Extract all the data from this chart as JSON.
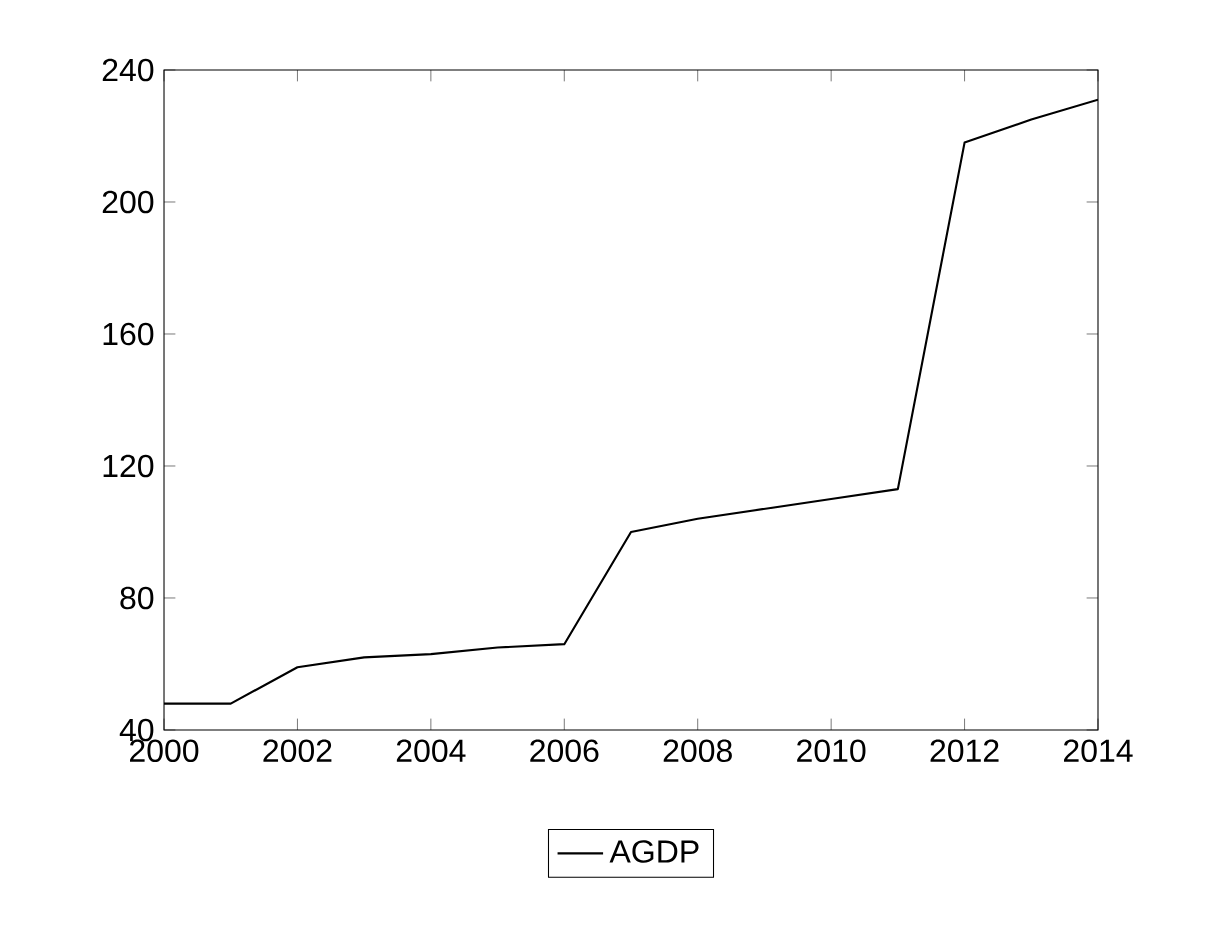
{
  "chart_data": {
    "type": "line",
    "x": [
      2000,
      2001,
      2002,
      2003,
      2004,
      2005,
      2006,
      2007,
      2008,
      2009,
      2010,
      2011,
      2012,
      2013,
      2014
    ],
    "series": [
      {
        "name": "AGDP",
        "color": "#000000",
        "values": [
          48,
          48,
          59,
          62,
          63,
          65,
          66,
          100,
          104,
          107,
          110,
          113,
          218,
          225,
          231
        ]
      }
    ],
    "xlim": [
      2000,
      2014
    ],
    "xticks": [
      2000,
      2002,
      2004,
      2006,
      2008,
      2010,
      2012,
      2014
    ],
    "ylim": [
      40,
      240
    ],
    "yticks": [
      40,
      80,
      120,
      160,
      200,
      240
    ],
    "grid": false,
    "legend": "bottom",
    "marker": "none",
    "line_style": "solid"
  }
}
